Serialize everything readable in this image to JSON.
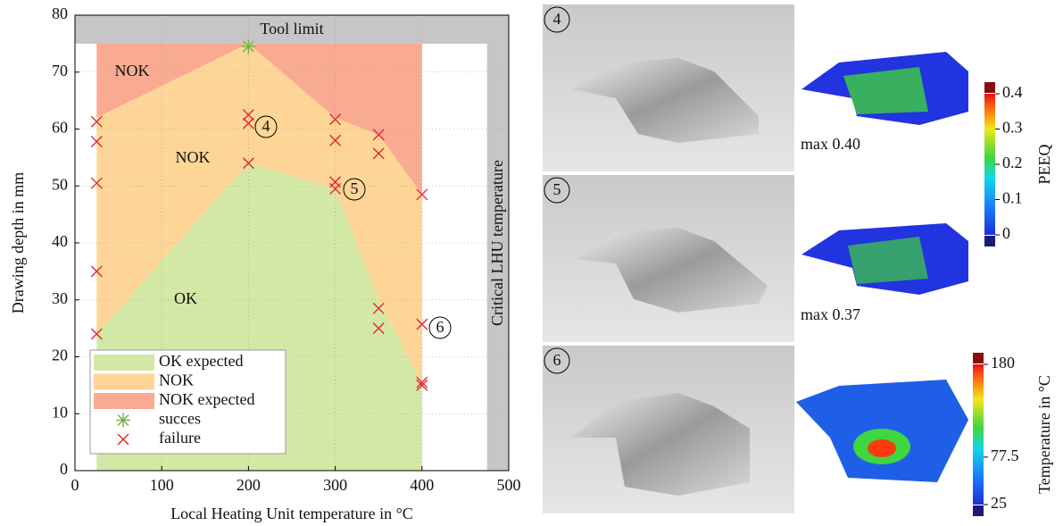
{
  "chart_data": {
    "type": "region-scatter",
    "xlabel": "Local Heating Unit temperature in °C",
    "ylabel": "Drawing depth in mm",
    "xlim": [
      0,
      500
    ],
    "xticks": [
      0,
      100,
      200,
      300,
      400,
      500
    ],
    "ylim": [
      0,
      80
    ],
    "yticks": [
      0,
      10,
      20,
      30,
      40,
      50,
      60,
      70,
      80
    ],
    "grid": true,
    "bands": [
      {
        "label": "Tool limit",
        "y": [
          75,
          80
        ],
        "color": "#c6c6c6"
      },
      {
        "label": "Critical LHU temperature",
        "x": [
          475,
          500
        ],
        "color": "#c6c6c6"
      }
    ],
    "regions": [
      {
        "name": "OK expected",
        "color": "#d4e8a6",
        "x": [
          25,
          25,
          200,
          300,
          350,
          400,
          400
        ],
        "y": [
          0,
          24,
          54,
          49.5,
          30,
          15,
          0
        ]
      },
      {
        "name": "NOK",
        "color": "#fdd597",
        "x": [
          25,
          25,
          200,
          300,
          350,
          400,
          400,
          350,
          300,
          200,
          25
        ],
        "y": [
          24,
          62,
          75,
          62,
          59,
          48.5,
          15,
          30,
          49.5,
          54,
          24
        ]
      },
      {
        "name": "NOK expected",
        "color": "#f9ab92",
        "x": [
          25,
          25,
          400,
          400,
          350,
          300,
          200,
          25
        ],
        "y": [
          62,
          75,
          75,
          48.5,
          59,
          62,
          75,
          62
        ]
      }
    ],
    "series": [
      {
        "name": "succes",
        "marker": "asterisk",
        "color": "#6cb33f",
        "x": [
          200
        ],
        "y": [
          74.5
        ]
      },
      {
        "name": "failure",
        "marker": "cross",
        "color": "#e3262b",
        "x": [
          25,
          25,
          25,
          25,
          25,
          200,
          200,
          200,
          300,
          300,
          300,
          300,
          350,
          350,
          350,
          350,
          400,
          400,
          400,
          400
        ],
        "y": [
          61.3,
          57.8,
          50.5,
          35,
          24,
          62.5,
          61,
          54,
          61.7,
          58,
          50.7,
          49.5,
          59,
          55.7,
          28.5,
          25,
          48.5,
          25.7,
          15.5,
          15
        ]
      }
    ],
    "annotations": [
      "NOK",
      "NOK",
      "OK",
      "4",
      "5",
      "6"
    ]
  },
  "panels": [
    {
      "label": "4",
      "max_label": "max 0.40"
    },
    {
      "label": "5",
      "max_label": "max 0.37"
    },
    {
      "label": "6"
    }
  ],
  "colorbars": [
    {
      "label": "PEEQ",
      "lim": [
        0,
        0.4
      ],
      "ticks": [
        0,
        0.1,
        0.2,
        0.3,
        0.4
      ]
    },
    {
      "label": "Temperature in °C",
      "lim": [
        25,
        180
      ],
      "ticks": [
        25,
        77.5,
        180
      ]
    }
  ]
}
